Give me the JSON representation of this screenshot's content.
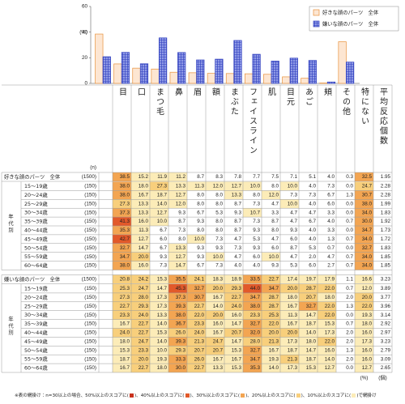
{
  "chart_data": {
    "type": "bar",
    "y_label": "(%)",
    "ylim": [
      0,
      60
    ],
    "yticks": [
      0,
      20,
      40,
      60
    ],
    "categories": [
      "目",
      "口",
      "まつ毛",
      "鼻",
      "眉",
      "額",
      "まぶた",
      "フェイスライン",
      "肌",
      "目元",
      "あご",
      "頬",
      "その他",
      "特にない"
    ],
    "series": [
      {
        "name": "好きな顔のパーツ　全体",
        "color": "#e8913b",
        "fill": "#fde6d2",
        "values": [
          38.5,
          15.2,
          11.9,
          11.2,
          8.7,
          8.3,
          7.8,
          7.7,
          7.5,
          7.1,
          5.1,
          4.0,
          0.3,
          32.5
        ]
      },
      {
        "name": "嫌いな顔のパーツ　全体",
        "color": "#2f3fbf",
        "fill": "#8f9ae6",
        "values": [
          20.8,
          24.2,
          15.3,
          35.5,
          24.1,
          18.3,
          18.9,
          33.5,
          22.7,
          17.4,
          19.7,
          17.9,
          1.1,
          16.6
        ]
      }
    ]
  },
  "table": {
    "avg_header": "平均反応個数",
    "n_header": "(n)",
    "units": [
      "(%)",
      "(個)"
    ],
    "shading": [
      {
        "min": 50,
        "color": "#c8321e"
      },
      {
        "min": 40,
        "color": "#e2592a"
      },
      {
        "min": 30,
        "color": "#f3a552"
      },
      {
        "min": 20,
        "color": "#f8cf7c"
      },
      {
        "min": 10,
        "color": "#fcecb8"
      }
    ],
    "footnote": [
      "※表の網掛け：n=30以上の場合、50%以上のスコアに(",
      ")、40%以上のスコアに(",
      ")、30%以上のスコアに(",
      ")、20%以上のスコアに(",
      ")、10%以上のスコアに(",
      ")で網掛け"
    ],
    "sections": [
      {
        "label": "好きな顔のパーツ　全体",
        "n": "(1500)",
        "values": [
          "38.5",
          "15.2",
          "11.9",
          "11.2",
          "8.7",
          "8.3",
          "7.8",
          "7.7",
          "7.5",
          "7.1",
          "5.1",
          "4.0",
          "0.3",
          "32.5"
        ],
        "average": "1.95",
        "group_label": "年代別",
        "rows": [
          {
            "label": "15～19歳",
            "n": "(150)",
            "values": [
              "38.0",
              "18.0",
              "27.3",
              "13.3",
              "11.3",
              "12.0",
              "12.7",
              "10.0",
              "8.0",
              "10.0",
              "4.0",
              "7.3",
              "0.0",
              "24.7"
            ],
            "average": "2.28"
          },
          {
            "label": "20～24歳",
            "n": "(150)",
            "values": [
              "38.0",
              "16.7",
              "18.7",
              "12.7",
              "8.0",
              "8.0",
              "13.3",
              "8.0",
              "12.0",
              "7.3",
              "7.3",
              "6.7",
              "1.3",
              "30.7"
            ],
            "average": "2.28"
          },
          {
            "label": "25～29歳",
            "n": "(150)",
            "values": [
              "27.3",
              "13.3",
              "14.0",
              "12.0",
              "8.0",
              "8.0",
              "8.7",
              "7.3",
              "4.7",
              "10.0",
              "4.0",
              "6.0",
              "0.0",
              "38.0"
            ],
            "average": "1.99"
          },
          {
            "label": "30～34歳",
            "n": "(150)",
            "values": [
              "37.3",
              "13.3",
              "12.7",
              "9.3",
              "6.7",
              "5.3",
              "9.3",
              "10.7",
              "3.3",
              "4.7",
              "4.7",
              "3.3",
              "0.0",
              "34.0"
            ],
            "average": "1.83"
          },
          {
            "label": "35～39歳",
            "n": "(150)",
            "values": [
              "41.3",
              "16.0",
              "10.0",
              "8.7",
              "9.3",
              "8.0",
              "8.7",
              "7.3",
              "8.7",
              "4.7",
              "6.7",
              "4.0",
              "0.7",
              "30.0"
            ],
            "average": "1.92"
          },
          {
            "label": "40～44歳",
            "n": "(150)",
            "values": [
              "35.3",
              "11.3",
              "6.7",
              "7.3",
              "8.0",
              "8.0",
              "8.7",
              "9.3",
              "8.0",
              "9.3",
              "4.0",
              "3.3",
              "0.0",
              "34.7"
            ],
            "average": "1.73"
          },
          {
            "label": "45～49歳",
            "n": "(150)",
            "values": [
              "42.7",
              "12.7",
              "6.0",
              "8.0",
              "10.0",
              "7.3",
              "4.7",
              "5.3",
              "4.7",
              "6.0",
              "4.0",
              "1.3",
              "0.7",
              "34.0"
            ],
            "average": "1.72"
          },
          {
            "label": "50～54歳",
            "n": "(150)",
            "values": [
              "32.7",
              "14.7",
              "6.7",
              "13.3",
              "9.3",
              "9.3",
              "7.3",
              "9.3",
              "6.0",
              "8.7",
              "5.3",
              "0.7",
              "0.0",
              "32.7"
            ],
            "average": "1.83"
          },
          {
            "label": "55～59歳",
            "n": "(150)",
            "values": [
              "34.7",
              "20.0",
              "9.3",
              "12.7",
              "9.3",
              "10.0",
              "4.7",
              "6.0",
              "10.0",
              "4.7",
              "2.0",
              "4.7",
              "0.7",
              "34.0"
            ],
            "average": "1.85"
          },
          {
            "label": "60～64歳",
            "n": "(150)",
            "values": [
              "38.0",
              "16.0",
              "7.3",
              "14.7",
              "6.7",
              "7.3",
              "4.0",
              "4.0",
              "9.3",
              "5.3",
              "6.0",
              "2.7",
              "0.7",
              "34.0"
            ],
            "average": "1.85"
          }
        ]
      },
      {
        "label": "嫌いな顔のパーツ　全体",
        "n": "(1500)",
        "values": [
          "20.8",
          "24.2",
          "15.3",
          "35.5",
          "24.1",
          "18.3",
          "18.9",
          "33.5",
          "22.7",
          "17.4",
          "19.7",
          "17.9",
          "1.1",
          "16.6"
        ],
        "average": "3.23",
        "group_label": "年代別",
        "rows": [
          {
            "label": "15～19歳",
            "n": "(150)",
            "values": [
              "25.3",
              "24.7",
              "14.7",
              "45.3",
              "32.7",
              "20.0",
              "29.3",
              "44.0",
              "34.7",
              "20.0",
              "28.7",
              "22.0",
              "0.7",
              "12.0"
            ],
            "average": "3.89"
          },
          {
            "label": "20～24歳",
            "n": "(150)",
            "values": [
              "27.3",
              "28.0",
              "17.3",
              "37.3",
              "30.7",
              "16.7",
              "22.7",
              "34.7",
              "28.7",
              "18.0",
              "20.7",
              "18.0",
              "2.0",
              "20.0"
            ],
            "average": "3.77"
          },
          {
            "label": "25～29歳",
            "n": "(150)",
            "values": [
              "22.7",
              "29.3",
              "17.3",
              "39.3",
              "22.7",
              "14.0",
              "24.0",
              "38.0",
              "28.7",
              "16.7",
              "32.7",
              "22.0",
              "1.3",
              "22.0"
            ],
            "average": "3.96"
          },
          {
            "label": "30～34歳",
            "n": "(150)",
            "values": [
              "23.3",
              "24.0",
              "13.3",
              "38.0",
              "22.0",
              "20.0",
              "16.0",
              "23.3",
              "25.3",
              "11.3",
              "14.7",
              "22.0",
              "0.0",
              "19.3"
            ],
            "average": "3.14"
          },
          {
            "label": "35～39歳",
            "n": "(150)",
            "values": [
              "16.7",
              "22.7",
              "14.0",
              "36.7",
              "23.3",
              "16.0",
              "14.7",
              "32.7",
              "22.0",
              "16.7",
              "18.7",
              "15.3",
              "0.7",
              "18.0"
            ],
            "average": "2.92"
          },
          {
            "label": "40～44歳",
            "n": "(150)",
            "values": [
              "24.0",
              "22.7",
              "15.3",
              "26.0",
              "24.0",
              "16.7",
              "20.7",
              "32.0",
              "20.0",
              "20.0",
              "14.0",
              "17.3",
              "2.0",
              "16.0"
            ],
            "average": "2.97"
          },
          {
            "label": "45～49歳",
            "n": "(150)",
            "values": [
              "18.0",
              "24.7",
              "14.0",
              "39.3",
              "21.3",
              "24.7",
              "14.7",
              "28.0",
              "21.3",
              "17.3",
              "18.0",
              "22.0",
              "2.0",
              "17.3"
            ],
            "average": "3.23"
          },
          {
            "label": "50～54歳",
            "n": "(150)",
            "values": [
              "15.3",
              "23.3",
              "10.0",
              "29.3",
              "20.7",
              "20.7",
              "15.3",
              "32.7",
              "16.7",
              "18.7",
              "14.7",
              "16.0",
              "1.3",
              "16.0"
            ],
            "average": "2.79"
          },
          {
            "label": "55～59歳",
            "n": "(150)",
            "values": [
              "18.7",
              "20.0",
              "19.3",
              "33.3",
              "26.0",
              "16.7",
              "16.7",
              "34.7",
              "19.3",
              "21.3",
              "18.7",
              "14.0",
              "2.0",
              "16.0"
            ],
            "average": "3.09"
          },
          {
            "label": "60～64歳",
            "n": "(150)",
            "values": [
              "16.7",
              "22.7",
              "18.0",
              "30.0",
              "22.7",
              "13.3",
              "15.3",
              "35.3",
              "14.0",
              "17.3",
              "15.3",
              "12.7",
              "0.0",
              "12.7"
            ],
            "average": "2.65"
          }
        ]
      }
    ]
  }
}
